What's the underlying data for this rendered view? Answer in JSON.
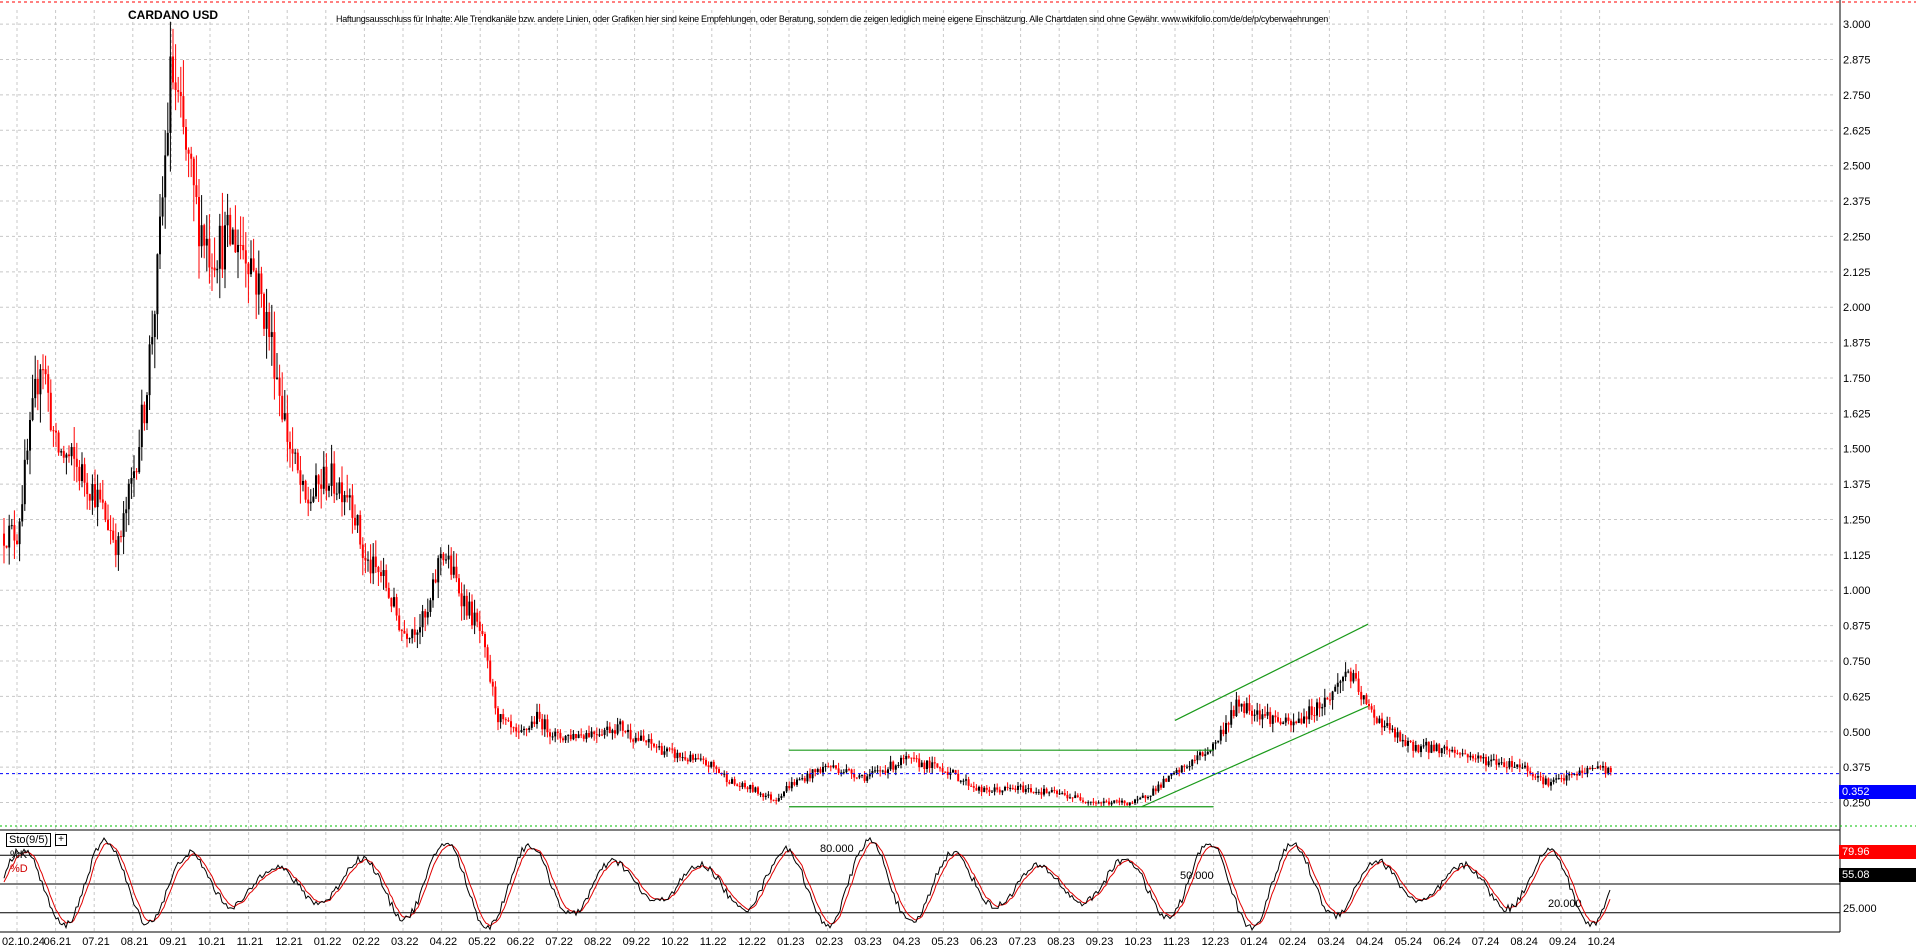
{
  "chart_data": {
    "type": "candlestick",
    "title": "CARDANO USD",
    "disclaimer": "Haftungsausschluss für Inhalte: Alle Trendkanäle bzw. andere Linien, oder Grafiken hier sind keine Empfehlungen, oder Beratung, sondern die zeigen lediglich meine eigene Einschätzung. Alle Chartdaten sind ohne Gewähr.  www.wikifolio.com/de/de/p/cyberwaehrungen",
    "y_axis": {
      "ticks": [
        "3.000",
        "2.875",
        "2.750",
        "2.625",
        "2.500",
        "2.375",
        "2.250",
        "2.125",
        "2.000",
        "1.875",
        "1.750",
        "1.625",
        "1.500",
        "1.375",
        "1.250",
        "1.125",
        "1.000",
        "0.875",
        "0.750",
        "0.625",
        "0.500",
        "0.375",
        "0.250"
      ],
      "ylim": [
        0.16,
        3.05
      ]
    },
    "x_axis": {
      "ticks": [
        "02.10.24",
        "06.21",
        "07.21",
        "08.21",
        "09.21",
        "10.21",
        "11.21",
        "12.21",
        "01.22",
        "02.22",
        "03.22",
        "04.22",
        "05.22",
        "06.22",
        "07.22",
        "08.22",
        "09.22",
        "10.22",
        "11.22",
        "12.22",
        "01.23",
        "02.23",
        "03.23",
        "04.23",
        "05.23",
        "06.23",
        "07.23",
        "08.23",
        "09.23",
        "10.23",
        "11.23",
        "12.23",
        "01.24",
        "02.24",
        "03.24",
        "04.24",
        "05.24",
        "06.24",
        "07.24",
        "08.24",
        "09.24",
        "10.24"
      ]
    },
    "last_price": "0.352",
    "price_path": [
      [
        "2021-05",
        1.2
      ],
      [
        "2021-05-20",
        1.85
      ],
      [
        "2021-06",
        1.5
      ],
      [
        "2021-06-15",
        1.45
      ],
      [
        "2021-07",
        1.35
      ],
      [
        "2021-07-20",
        1.15
      ],
      [
        "2021-08",
        1.4
      ],
      [
        "2021-08-10",
        1.65
      ],
      [
        "2021-08-20",
        2.1
      ],
      [
        "2021-09",
        2.85
      ],
      [
        "2021-09-10",
        2.6
      ],
      [
        "2021-09-20",
        2.35
      ],
      [
        "2021-10",
        2.2
      ],
      [
        "2021-10-20",
        2.25
      ],
      [
        "2021-11",
        2.2
      ],
      [
        "2021-11-10",
        2.05
      ],
      [
        "2021-11-20",
        1.85
      ],
      [
        "2021-12",
        1.55
      ],
      [
        "2021-12-15",
        1.3
      ],
      [
        "2022-01",
        1.4
      ],
      [
        "2022-01-20",
        1.35
      ],
      [
        "2022-02",
        1.1
      ],
      [
        "2022-02-15",
        1.05
      ],
      [
        "2022-03",
        0.85
      ],
      [
        "2022-03-20",
        0.9
      ],
      [
        "2022-04",
        1.15
      ],
      [
        "2022-04-20",
        0.95
      ],
      [
        "2022-05",
        0.85
      ],
      [
        "2022-05-15",
        0.55
      ],
      [
        "2022-06",
        0.48
      ],
      [
        "2022-06-15",
        0.55
      ],
      [
        "2022-07",
        0.48
      ],
      [
        "2022-08",
        0.5
      ],
      [
        "2022-08-20",
        0.52
      ],
      [
        "2022-09",
        0.48
      ],
      [
        "2022-10",
        0.42
      ],
      [
        "2022-11",
        0.38
      ],
      [
        "2022-11-20",
        0.31
      ],
      [
        "2022-12",
        0.3
      ],
      [
        "2022-12-20",
        0.26
      ],
      [
        "2023-01",
        0.31
      ],
      [
        "2023-02",
        0.38
      ],
      [
        "2023-03",
        0.34
      ],
      [
        "2023-04",
        0.4
      ],
      [
        "2023-05",
        0.37
      ],
      [
        "2023-06",
        0.29
      ],
      [
        "2023-07",
        0.3
      ],
      [
        "2023-08",
        0.28
      ],
      [
        "2023-09",
        0.25
      ],
      [
        "2023-10",
        0.25
      ],
      [
        "2023-11",
        0.35
      ],
      [
        "2023-12",
        0.45
      ],
      [
        "2023-12-20",
        0.6
      ],
      [
        "2024-01",
        0.58
      ],
      [
        "2024-02",
        0.52
      ],
      [
        "2024-03",
        0.62
      ],
      [
        "2024-03-15",
        0.72
      ],
      [
        "2024-04",
        0.58
      ],
      [
        "2024-05",
        0.45
      ],
      [
        "2024-06",
        0.44
      ],
      [
        "2024-07",
        0.4
      ],
      [
        "2024-08",
        0.38
      ],
      [
        "2024-08-20",
        0.32
      ],
      [
        "2024-09",
        0.33
      ],
      [
        "2024-10",
        0.38
      ],
      [
        "2024-10-10",
        0.352
      ]
    ],
    "trendlines": [
      {
        "color": "#1a9a1a",
        "points": [
          [
            "2023-01",
            0.435
          ],
          [
            "2023-12",
            0.435
          ]
        ]
      },
      {
        "color": "#1a9a1a",
        "points": [
          [
            "2023-01",
            0.235
          ],
          [
            "2023-12",
            0.235
          ]
        ]
      },
      {
        "color": "#1a9a1a",
        "points": [
          [
            "2023-10-05",
            0.235
          ],
          [
            "2024-04",
            0.59
          ]
        ]
      },
      {
        "color": "#1a9a1a",
        "points": [
          [
            "2023-11",
            0.54
          ],
          [
            "2024-04",
            0.88
          ]
        ]
      }
    ],
    "indicator": {
      "name": "Sto(9/5)",
      "k_label": "%K",
      "d_label": "%D",
      "k_value": "79.96",
      "d_value": "55.08",
      "levels": [
        "80.000",
        "50.000",
        "20.000"
      ],
      "axis_tick": "25.000",
      "k_color": "#000000",
      "d_color": "#e00000"
    },
    "grid": true,
    "colors": {
      "up": "#000000",
      "down": "#ff0000",
      "price_line": "#0000ff",
      "trend": "#1a9a1a"
    }
  }
}
